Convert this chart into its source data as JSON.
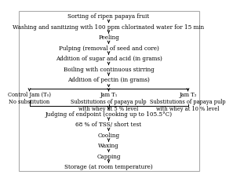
{
  "bg_color": "#ffffff",
  "border_color": "#cccccc",
  "top_steps": [
    "Sorting of ripen papaya fruit",
    "Washing and sanitizing with 100 ppm chlorinated water for 15 min",
    "Peeling",
    "Pulping (removal of seed and core)",
    "Addition of sugar and acid (in grams)",
    "Boiling with continuous stirring",
    "Addition of pectin (in grams)"
  ],
  "branch_labels": [
    "Control Jam (T₀)\nNo substitution",
    "Jam T₁\nSubstitutions of papaya pulp\nwith whey at 5 % level",
    "Jam T₂\nSubstitutions of papaya pulp\nwith whey at 10 % level"
  ],
  "bottom_steps": [
    "Judging of endpoint (cooking up to 105.5°C)",
    "68 % of TSS/ short test",
    "Cooling",
    "Waxing",
    "Capping",
    "Storage (at room temperature)"
  ],
  "fontsize": 5.2,
  "branch_fontsize": 4.8,
  "arrow_color": "#000000",
  "text_color": "#000000"
}
